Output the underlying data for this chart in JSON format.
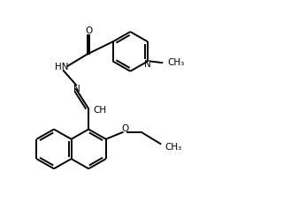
{
  "bg_color": "#ffffff",
  "line_color": "#000000",
  "text_color": "#000000",
  "lw": 1.4,
  "fs": 7.5,
  "fig_width": 3.2,
  "fig_height": 2.54,
  "dpi": 100,
  "xlim": [
    0,
    10
  ],
  "ylim": [
    0,
    8
  ]
}
